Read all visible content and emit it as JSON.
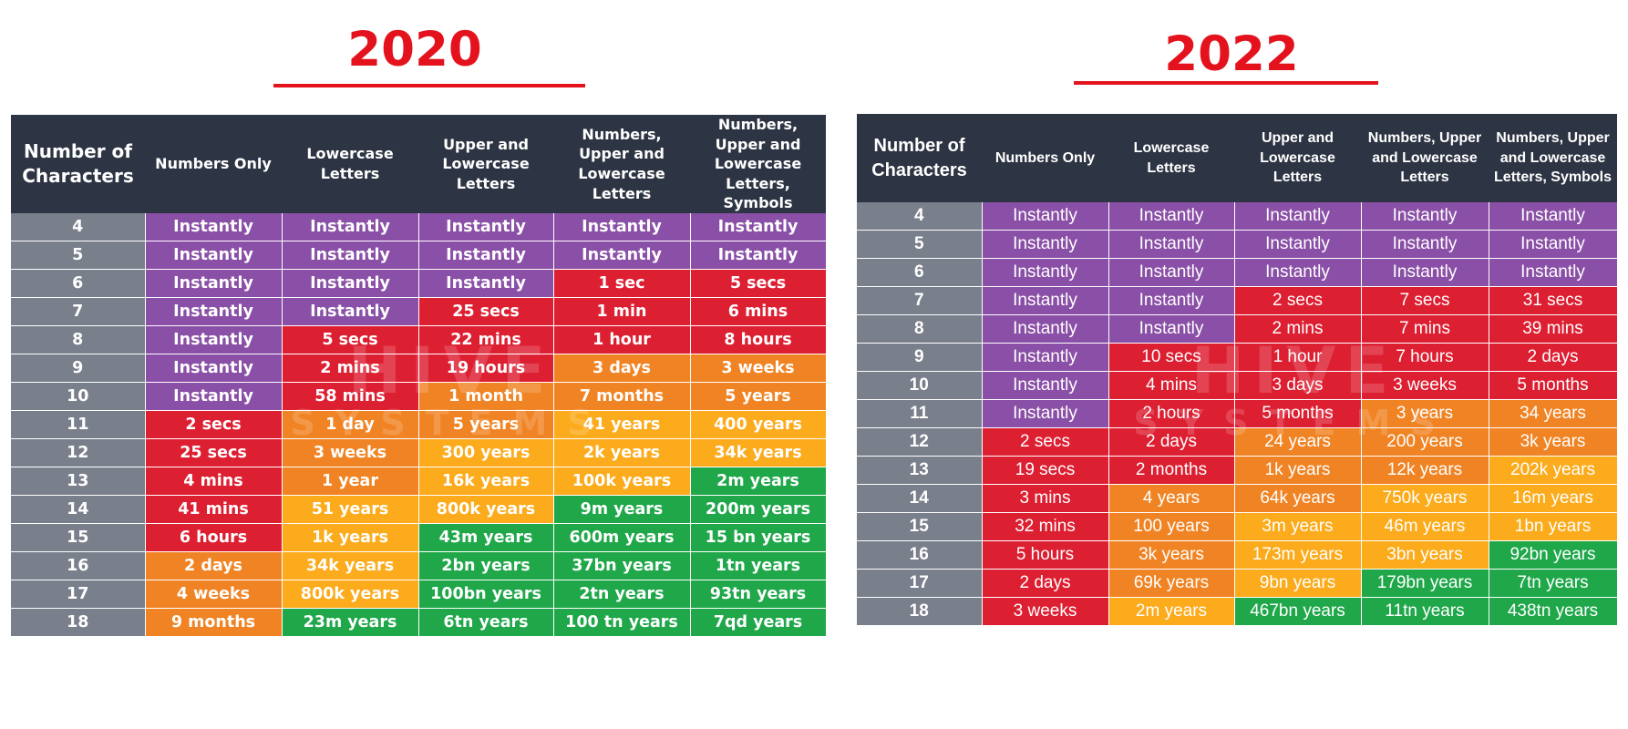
{
  "colors": {
    "Instantly": "#8a4fa6",
    "red": "#dd1f32",
    "dark_orange": "#f08424",
    "orange": "#fbab1b",
    "green": "#1fa74a",
    "header": "#2d3443",
    "number_column": "#7a7f8c",
    "title_red": "#e3121d"
  },
  "watermark": {
    "line1": "HIVE",
    "line2": "SYSTEMS"
  },
  "chart_data": [
    {
      "type": "table",
      "title": "2020",
      "columns": [
        "Number of Characters",
        "Numbers Only",
        "Lowercase Letters",
        "Upper and Lowercase Letters",
        "Numbers, Upper and Lowercase Letters",
        "Numbers, Upper and Lowercase Letters, Symbols"
      ],
      "rows": [
        [
          "4",
          "Instantly",
          "Instantly",
          "Instantly",
          "Instantly",
          "Instantly"
        ],
        [
          "5",
          "Instantly",
          "Instantly",
          "Instantly",
          "Instantly",
          "Instantly"
        ],
        [
          "6",
          "Instantly",
          "Instantly",
          "Instantly",
          "1 sec",
          "5 secs"
        ],
        [
          "7",
          "Instantly",
          "Instantly",
          "25 secs",
          "1 min",
          "6 mins"
        ],
        [
          "8",
          "Instantly",
          "5 secs",
          "22 mins",
          "1 hour",
          "8 hours"
        ],
        [
          "9",
          "Instantly",
          "2 mins",
          "19 hours",
          "3 days",
          "3 weeks"
        ],
        [
          "10",
          "Instantly",
          "58 mins",
          "1 month",
          "7 months",
          "5 years"
        ],
        [
          "11",
          "2 secs",
          "1 day",
          "5 years",
          "41 years",
          "400 years"
        ],
        [
          "12",
          "25 secs",
          "3 weeks",
          "300 years",
          "2k years",
          "34k years"
        ],
        [
          "13",
          "4 mins",
          "1 year",
          "16k years",
          "100k years",
          "2m years"
        ],
        [
          "14",
          "41 mins",
          "51 years",
          "800k years",
          "9m years",
          "200m years"
        ],
        [
          "15",
          "6 hours",
          "1k years",
          "43m years",
          "600m years",
          "15 bn years"
        ],
        [
          "16",
          "2 days",
          "34k years",
          "2bn years",
          "37bn years",
          "1tn years"
        ],
        [
          "17",
          "4 weeks",
          "800k years",
          "100bn years",
          "2tn years",
          "93tn years"
        ],
        [
          "18",
          "9 months",
          "23m years",
          "6tn years",
          "100 tn years",
          "7qd years"
        ]
      ],
      "cell_colors": [
        [
          "Instantly",
          "Instantly",
          "Instantly",
          "Instantly",
          "Instantly"
        ],
        [
          "Instantly",
          "Instantly",
          "Instantly",
          "Instantly",
          "Instantly"
        ],
        [
          "Instantly",
          "Instantly",
          "Instantly",
          "red",
          "red"
        ],
        [
          "Instantly",
          "Instantly",
          "red",
          "red",
          "red"
        ],
        [
          "Instantly",
          "red",
          "red",
          "red",
          "red"
        ],
        [
          "Instantly",
          "red",
          "red",
          "dark_orange",
          "dark_orange"
        ],
        [
          "Instantly",
          "red",
          "dark_orange",
          "dark_orange",
          "dark_orange"
        ],
        [
          "red",
          "dark_orange",
          "dark_orange",
          "orange",
          "orange"
        ],
        [
          "red",
          "dark_orange",
          "orange",
          "orange",
          "orange"
        ],
        [
          "red",
          "dark_orange",
          "orange",
          "orange",
          "green"
        ],
        [
          "red",
          "orange",
          "orange",
          "green",
          "green"
        ],
        [
          "red",
          "orange",
          "green",
          "green",
          "green"
        ],
        [
          "dark_orange",
          "orange",
          "green",
          "green",
          "green"
        ],
        [
          "dark_orange",
          "orange",
          "green",
          "green",
          "green"
        ],
        [
          "dark_orange",
          "green",
          "green",
          "green",
          "green"
        ]
      ]
    },
    {
      "type": "table",
      "title": "2022",
      "columns": [
        "Number of Characters",
        "Numbers Only",
        "Lowercase Letters",
        "Upper and Lowercase Letters",
        "Numbers, Upper and Lowercase Letters",
        "Numbers, Upper and Lowercase Letters, Symbols"
      ],
      "rows": [
        [
          "4",
          "Instantly",
          "Instantly",
          "Instantly",
          "Instantly",
          "Instantly"
        ],
        [
          "5",
          "Instantly",
          "Instantly",
          "Instantly",
          "Instantly",
          "Instantly"
        ],
        [
          "6",
          "Instantly",
          "Instantly",
          "Instantly",
          "Instantly",
          "Instantly"
        ],
        [
          "7",
          "Instantly",
          "Instantly",
          "2 secs",
          "7 secs",
          "31 secs"
        ],
        [
          "8",
          "Instantly",
          "Instantly",
          "2 mins",
          "7 mins",
          "39 mins"
        ],
        [
          "9",
          "Instantly",
          "10 secs",
          "1 hour",
          "7 hours",
          "2 days"
        ],
        [
          "10",
          "Instantly",
          "4 mins",
          "3 days",
          "3 weeks",
          "5 months"
        ],
        [
          "11",
          "Instantly",
          "2 hours",
          "5 months",
          "3 years",
          "34 years"
        ],
        [
          "12",
          "2 secs",
          "2 days",
          "24 years",
          "200 years",
          "3k years"
        ],
        [
          "13",
          "19 secs",
          "2 months",
          "1k years",
          "12k years",
          "202k years"
        ],
        [
          "14",
          "3 mins",
          "4 years",
          "64k years",
          "750k years",
          "16m years"
        ],
        [
          "15",
          "32 mins",
          "100 years",
          "3m years",
          "46m years",
          "1bn years"
        ],
        [
          "16",
          "5 hours",
          "3k years",
          "173m years",
          "3bn years",
          "92bn years"
        ],
        [
          "17",
          "2 days",
          "69k years",
          "9bn years",
          "179bn years",
          "7tn years"
        ],
        [
          "18",
          "3 weeks",
          "2m years",
          "467bn years",
          "11tn years",
          "438tn years"
        ]
      ],
      "cell_colors": [
        [
          "Instantly",
          "Instantly",
          "Instantly",
          "Instantly",
          "Instantly"
        ],
        [
          "Instantly",
          "Instantly",
          "Instantly",
          "Instantly",
          "Instantly"
        ],
        [
          "Instantly",
          "Instantly",
          "Instantly",
          "Instantly",
          "Instantly"
        ],
        [
          "Instantly",
          "Instantly",
          "red",
          "red",
          "red"
        ],
        [
          "Instantly",
          "Instantly",
          "red",
          "red",
          "red"
        ],
        [
          "Instantly",
          "red",
          "red",
          "red",
          "red"
        ],
        [
          "Instantly",
          "red",
          "red",
          "red",
          "red"
        ],
        [
          "Instantly",
          "red",
          "red",
          "dark_orange",
          "dark_orange"
        ],
        [
          "red",
          "red",
          "dark_orange",
          "dark_orange",
          "dark_orange"
        ],
        [
          "red",
          "red",
          "dark_orange",
          "dark_orange",
          "orange"
        ],
        [
          "red",
          "dark_orange",
          "dark_orange",
          "orange",
          "orange"
        ],
        [
          "red",
          "dark_orange",
          "orange",
          "orange",
          "orange"
        ],
        [
          "red",
          "dark_orange",
          "orange",
          "orange",
          "green"
        ],
        [
          "red",
          "dark_orange",
          "orange",
          "green",
          "green"
        ],
        [
          "red",
          "orange",
          "green",
          "green",
          "green"
        ]
      ]
    }
  ]
}
